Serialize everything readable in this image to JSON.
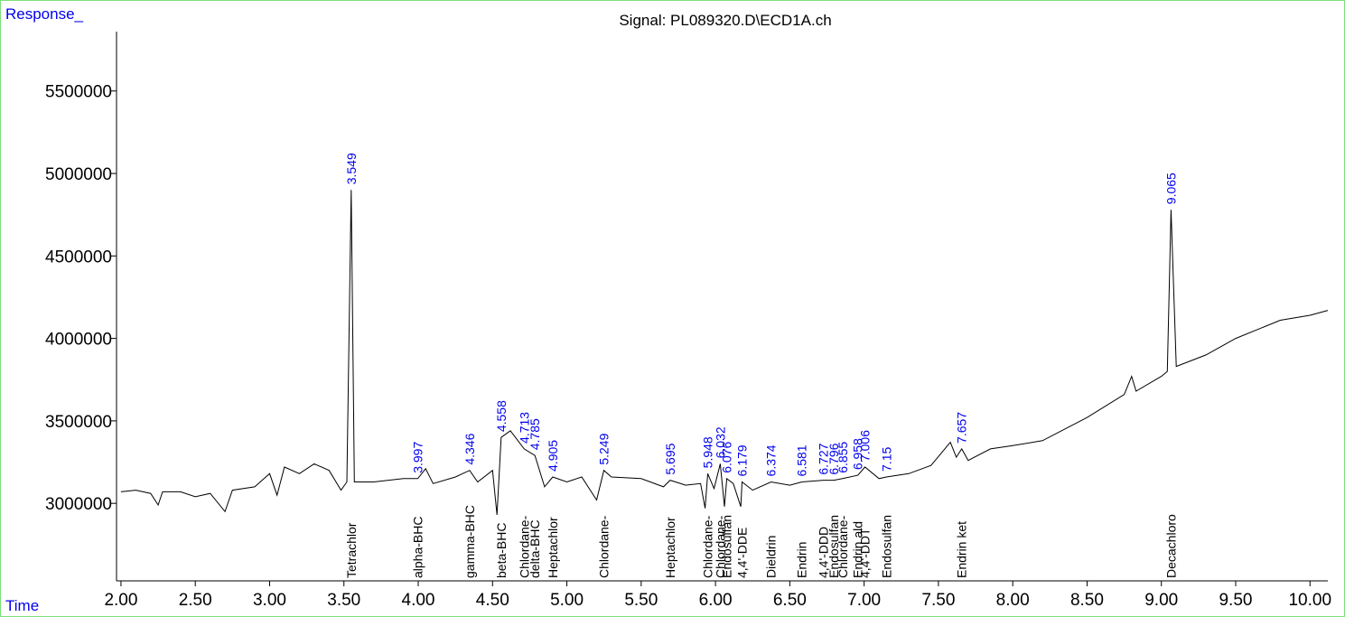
{
  "chart_data": {
    "type": "line",
    "title": "Signal: PL089320.D\\ECD1A.ch",
    "y_label": "Response_",
    "x_label": "Time",
    "xlim": [
      1.97,
      10.12
    ],
    "ylim": [
      2530000,
      5860000
    ],
    "xticks": [
      {
        "value": 2,
        "label": "2.00"
      },
      {
        "value": 2.5,
        "label": "2.50"
      },
      {
        "value": 3,
        "label": "3.00"
      },
      {
        "value": 3.5,
        "label": "3.50"
      },
      {
        "value": 4,
        "label": "4.00"
      },
      {
        "value": 4.5,
        "label": "4.50"
      },
      {
        "value": 5,
        "label": "5.00"
      },
      {
        "value": 5.5,
        "label": "5.50"
      },
      {
        "value": 6,
        "label": "6.00"
      },
      {
        "value": 6.5,
        "label": "6.50"
      },
      {
        "value": 7,
        "label": "7.00"
      },
      {
        "value": 7.5,
        "label": "7.50"
      },
      {
        "value": 8,
        "label": "8.00"
      },
      {
        "value": 8.5,
        "label": "8.50"
      },
      {
        "value": 9,
        "label": "9.00"
      },
      {
        "value": 9.5,
        "label": "9.50"
      },
      {
        "value": 10,
        "label": "10.00"
      }
    ],
    "yticks": [
      3000000,
      3500000,
      4000000,
      4500000,
      5000000,
      5500000
    ],
    "series": [
      {
        "color": "#000000",
        "x": [
          2.0,
          2.1,
          2.2,
          2.25,
          2.28,
          2.4,
          2.5,
          2.6,
          2.7,
          2.75,
          2.9,
          3.0,
          3.05,
          3.1,
          3.2,
          3.3,
          3.4,
          3.48,
          3.52,
          3.549,
          3.57,
          3.7,
          3.9,
          3.997,
          4.05,
          4.1,
          4.25,
          4.346,
          4.4,
          4.5,
          4.53,
          4.558,
          4.62,
          4.713,
          4.785,
          4.85,
          4.905,
          5.0,
          5.1,
          5.2,
          5.249,
          5.3,
          5.5,
          5.65,
          5.695,
          5.8,
          5.9,
          5.93,
          5.948,
          5.99,
          6.032,
          6.06,
          6.076,
          6.12,
          6.17,
          6.179,
          6.25,
          6.374,
          6.5,
          6.581,
          6.727,
          6.796,
          6.855,
          6.958,
          7.006,
          7.1,
          7.15,
          7.3,
          7.45,
          7.58,
          7.62,
          7.657,
          7.7,
          7.85,
          8.0,
          8.2,
          8.5,
          8.75,
          8.8,
          8.83,
          9.0,
          9.04,
          9.065,
          9.1,
          9.3,
          9.5,
          9.8,
          10.0,
          10.12
        ],
        "values": [
          3070000,
          3080000,
          3060000,
          2990000,
          3070000,
          3070000,
          3040000,
          3060000,
          2950000,
          3080000,
          3100000,
          3180000,
          3050000,
          3220000,
          3180000,
          3240000,
          3200000,
          3080000,
          3130000,
          4900000,
          3130000,
          3130000,
          3150000,
          3150000,
          3210000,
          3120000,
          3160000,
          3200000,
          3130000,
          3200000,
          2930000,
          3400000,
          3440000,
          3330000,
          3290000,
          3100000,
          3160000,
          3130000,
          3160000,
          3020000,
          3200000,
          3160000,
          3150000,
          3100000,
          3140000,
          3110000,
          3120000,
          2970000,
          3180000,
          3090000,
          3240000,
          2980000,
          3150000,
          3120000,
          2980000,
          3130000,
          3080000,
          3130000,
          3110000,
          3130000,
          3140000,
          3140000,
          3150000,
          3170000,
          3220000,
          3150000,
          3160000,
          3180000,
          3230000,
          3370000,
          3280000,
          3330000,
          3260000,
          3330000,
          3350000,
          3380000,
          3520000,
          3660000,
          3770000,
          3680000,
          3770000,
          3800000,
          4780000,
          3830000,
          3900000,
          4000000,
          4110000,
          4140000,
          4170000
        ]
      }
    ],
    "peaks": [
      {
        "rt": 3.549,
        "top": 4900000,
        "name": "Tetrachlor"
      },
      {
        "rt": 3.997,
        "top": 3150000,
        "name": "alpha-BHC"
      },
      {
        "rt": 4.346,
        "top": 3200000,
        "name": "gamma-BHC"
      },
      {
        "rt": 4.558,
        "top": 3400000,
        "name": "beta-BHC"
      },
      {
        "rt": 4.713,
        "top": 3330000,
        "name": "Chlordane-"
      },
      {
        "rt": 4.785,
        "top": 3290000,
        "name": "delta-BHC"
      },
      {
        "rt": 4.905,
        "top": 3160000,
        "name": "Heptachlor"
      },
      {
        "rt": 5.249,
        "top": 3200000,
        "name": "Chlordane-"
      },
      {
        "rt": 5.695,
        "top": 3140000,
        "name": "Heptachlor"
      },
      {
        "rt": 5.948,
        "top": 3180000,
        "name": "Chlordane-"
      },
      {
        "rt": 6.032,
        "top": 3240000,
        "name": "Chlordane-"
      },
      {
        "rt": 6.076,
        "top": 3150000,
        "name": "Endosulfan"
      },
      {
        "rt": 6.179,
        "top": 3130000,
        "name": "4,4'-DDE"
      },
      {
        "rt": 6.374,
        "top": 3130000,
        "name": "Dieldrin"
      },
      {
        "rt": 6.581,
        "top": 3130000,
        "name": "Endrin"
      },
      {
        "rt": 6.727,
        "top": 3140000,
        "name": "4,4'-DDD"
      },
      {
        "rt": 6.796,
        "top": 3140000,
        "name": "Endosulfan"
      },
      {
        "rt": 6.855,
        "top": 3150000,
        "name": "Chlordane-"
      },
      {
        "rt": 6.958,
        "top": 3170000,
        "name": "Endrin ald"
      },
      {
        "rt": 7.006,
        "top": 3220000,
        "name": "4,4'-DDT"
      },
      {
        "rt": 7.15,
        "top": 3160000,
        "name": "Endosulfan"
      },
      {
        "rt": 7.657,
        "top": 3330000,
        "name": "Endrin ket"
      },
      {
        "rt": 9.065,
        "top": 4780000,
        "name": "Decachloro"
      }
    ],
    "peak_label_color": "#0000ee"
  }
}
